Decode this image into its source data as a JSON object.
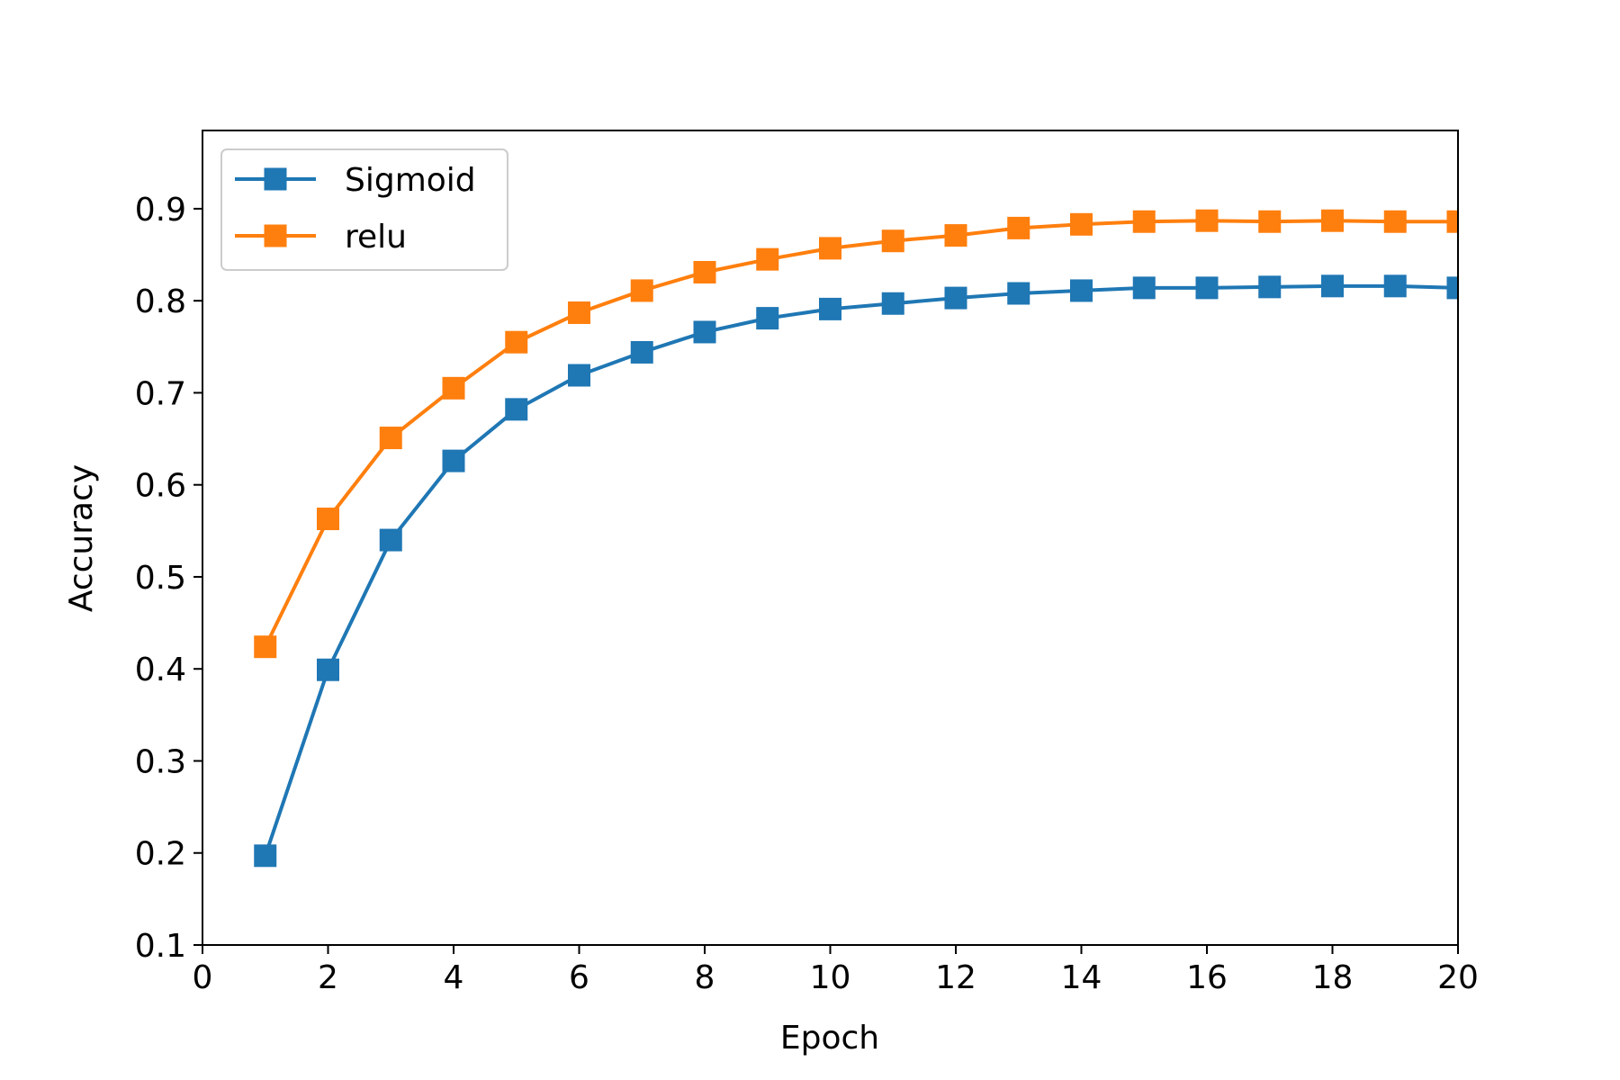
{
  "chart_data": {
    "type": "line",
    "title": "",
    "xlabel": "Epoch",
    "ylabel": "Accuracy",
    "xlim": [
      0,
      20
    ],
    "ylim": [
      0.1,
      0.985
    ],
    "xticks": [
      0,
      2,
      4,
      6,
      8,
      10,
      12,
      14,
      16,
      18,
      20
    ],
    "xtick_labels": [
      "0",
      "2",
      "4",
      "6",
      "8",
      "10",
      "12",
      "14",
      "16",
      "18",
      "20"
    ],
    "yticks": [
      0.1,
      0.2,
      0.3,
      0.4,
      0.5,
      0.6,
      0.7,
      0.8,
      0.9
    ],
    "ytick_labels": [
      "0.1",
      "0.2",
      "0.3",
      "0.4",
      "0.5",
      "0.6",
      "0.7",
      "0.8",
      "0.9"
    ],
    "grid": false,
    "legend_position": "upper-left",
    "x": [
      1,
      2,
      3,
      4,
      5,
      6,
      7,
      8,
      9,
      10,
      11,
      12,
      13,
      14,
      15,
      16,
      17,
      18,
      19,
      20
    ],
    "series": [
      {
        "name": "Sigmoid",
        "color": "#1f77b4",
        "marker": "square",
        "values": [
          0.197,
          0.399,
          0.54,
          0.626,
          0.682,
          0.719,
          0.744,
          0.766,
          0.781,
          0.791,
          0.797,
          0.803,
          0.808,
          0.811,
          0.814,
          0.814,
          0.815,
          0.816,
          0.816,
          0.814
        ]
      },
      {
        "name": "relu",
        "color": "#ff7f0e",
        "marker": "square",
        "values": [
          0.424,
          0.563,
          0.651,
          0.705,
          0.755,
          0.787,
          0.811,
          0.831,
          0.845,
          0.857,
          0.865,
          0.871,
          0.879,
          0.883,
          0.886,
          0.887,
          0.886,
          0.887,
          0.886,
          0.886
        ]
      }
    ]
  }
}
